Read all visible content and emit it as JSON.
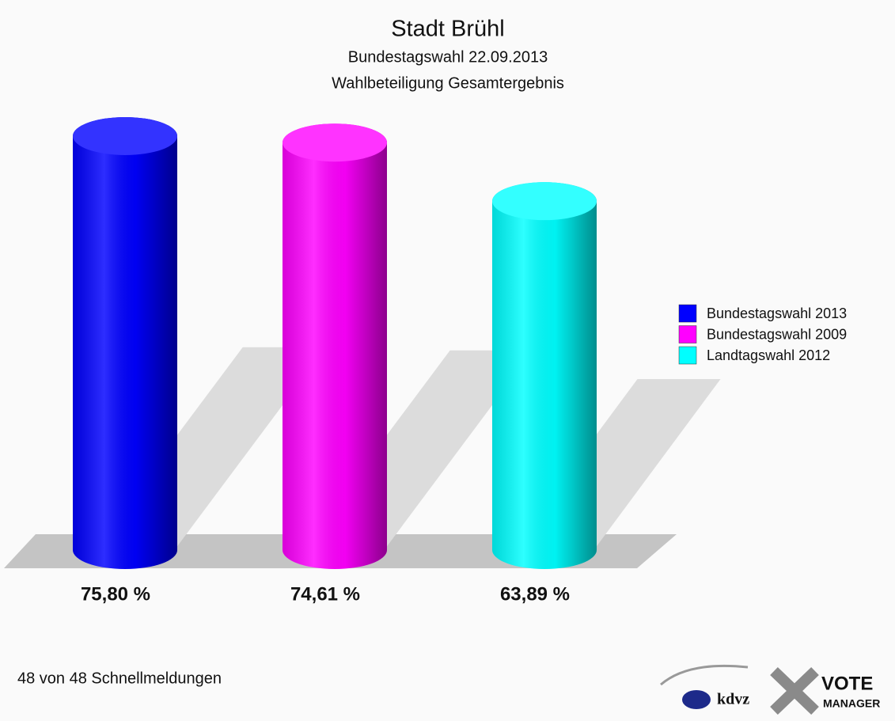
{
  "chart_data": {
    "type": "cylinder",
    "title": "Stadt Brühl",
    "subtitle": [
      "Bundestagswahl 22.09.2013",
      "Wahlbeteiligung Gesamtergebnis"
    ],
    "series": [
      {
        "name": "Bundestagswahl 2013",
        "color": "#0000ff",
        "values": [
          75.8
        ],
        "value_labels": [
          "75,80 %"
        ]
      },
      {
        "name": "Bundestagswahl 2009",
        "color": "#ff00ff",
        "values": [
          74.61
        ],
        "value_labels": [
          "74,61 %"
        ]
      },
      {
        "name": "Landtagswahl 2012",
        "color": "#00ffff",
        "values": [
          63.89
        ],
        "value_labels": [
          "63,89 %"
        ]
      }
    ],
    "ylim": [
      0,
      100
    ],
    "legend": "right",
    "footnote": "48 von 48 Schnellmeldungen",
    "logos": [
      "kdvz",
      "VOTE",
      "MANAGER"
    ]
  }
}
